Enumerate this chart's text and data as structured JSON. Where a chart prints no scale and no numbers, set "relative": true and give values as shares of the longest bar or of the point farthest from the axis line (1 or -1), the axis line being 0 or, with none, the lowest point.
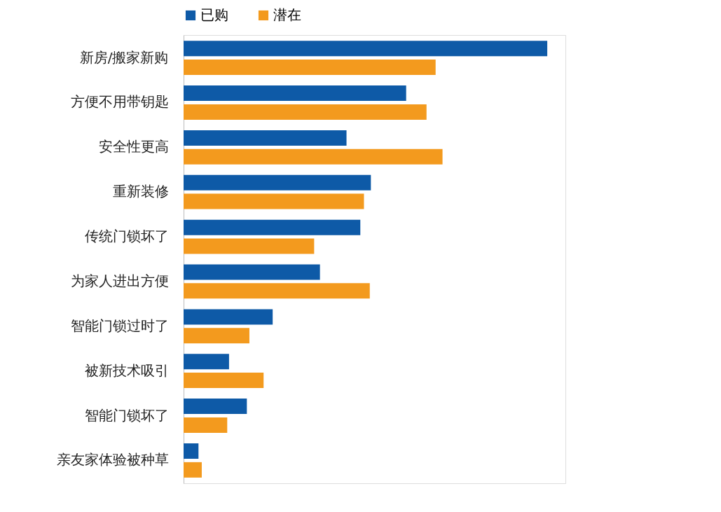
{
  "chart_data": {
    "type": "bar",
    "orientation": "horizontal",
    "relative": true,
    "legend": "top",
    "categories": [
      "新房/搬家新购",
      "方便不用带钥匙",
      "安全性更高",
      "重新装修",
      "传统门锁坏了",
      "为家人进出方便",
      "智能门锁过时了",
      "被新技术吸引",
      "智能门锁坏了",
      "亲友家体验被种草"
    ],
    "series": [
      {
        "name": "已购",
        "color": "#0e5aa7",
        "values": [
          1.0,
          0.612,
          0.448,
          0.515,
          0.486,
          0.375,
          0.245,
          0.125,
          0.174,
          0.041
        ]
      },
      {
        "name": "潜在",
        "color": "#f39a1e",
        "values": [
          0.693,
          0.668,
          0.712,
          0.496,
          0.359,
          0.512,
          0.181,
          0.22,
          0.12,
          0.05
        ]
      }
    ]
  }
}
